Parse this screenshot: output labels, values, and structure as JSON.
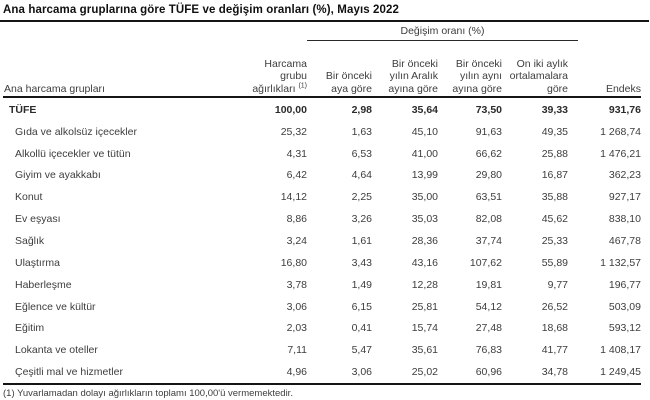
{
  "page": {
    "title": "Ana harcama gruplarına göre TÜFE ve değişim oranları (%), Mayıs 2022",
    "footnote": "(1) Yuvarlamadan dolayı ağırlıkların toplamı 100,00'ü vermemektedir."
  },
  "table": {
    "change_group_header": "Değişim oranı (%)",
    "row_header": "Ana harcama grupları",
    "weight_header": {
      "line1": "Harcama",
      "line2": "grubu",
      "line3": "ağırlıkları",
      "superscript": "(1)"
    },
    "change_headers": [
      {
        "line1": "Bir önceki",
        "line2": "aya göre",
        "line3": ""
      },
      {
        "line1": "Bir önceki",
        "line2": "yılın Aralık",
        "line3": "ayına göre"
      },
      {
        "line1": "Bir önceki",
        "line2": "yılın aynı",
        "line3": "ayına göre"
      },
      {
        "line1": "On iki aylık",
        "line2": "ortalamalara",
        "line3": "göre"
      }
    ],
    "index_header": "Endeks",
    "rows": [
      {
        "name": "TÜFE",
        "bold": true,
        "indent": false,
        "values": [
          "100,00",
          "2,98",
          "35,64",
          "73,50",
          "39,33",
          "931,76"
        ]
      },
      {
        "name": "Gıda ve alkolsüz içecekler",
        "bold": false,
        "indent": true,
        "values": [
          "25,32",
          "1,63",
          "45,10",
          "91,63",
          "49,35",
          "1 268,74"
        ]
      },
      {
        "name": "Alkollü içecekler ve tütün",
        "bold": false,
        "indent": true,
        "values": [
          "4,31",
          "6,53",
          "41,00",
          "66,62",
          "25,88",
          "1 476,21"
        ]
      },
      {
        "name": "Giyim ve ayakkabı",
        "bold": false,
        "indent": true,
        "values": [
          "6,42",
          "4,64",
          "13,99",
          "29,80",
          "16,87",
          "362,23"
        ]
      },
      {
        "name": "Konut",
        "bold": false,
        "indent": true,
        "values": [
          "14,12",
          "2,25",
          "35,00",
          "63,51",
          "35,88",
          "927,17"
        ]
      },
      {
        "name": "Ev eşyası",
        "bold": false,
        "indent": true,
        "values": [
          "8,86",
          "3,26",
          "35,03",
          "82,08",
          "45,62",
          "838,10"
        ]
      },
      {
        "name": "Sağlık",
        "bold": false,
        "indent": true,
        "values": [
          "3,24",
          "1,61",
          "28,36",
          "37,74",
          "25,33",
          "467,78"
        ]
      },
      {
        "name": "Ulaştırma",
        "bold": false,
        "indent": true,
        "values": [
          "16,80",
          "3,43",
          "43,16",
          "107,62",
          "55,89",
          "1 132,57"
        ]
      },
      {
        "name": "Haberleşme",
        "bold": false,
        "indent": true,
        "values": [
          "3,78",
          "1,49",
          "12,28",
          "19,81",
          "9,77",
          "196,77"
        ]
      },
      {
        "name": "Eğlence ve kültür",
        "bold": false,
        "indent": true,
        "values": [
          "3,06",
          "6,15",
          "25,81",
          "54,12",
          "26,52",
          "503,09"
        ]
      },
      {
        "name": "Eğitim",
        "bold": false,
        "indent": true,
        "values": [
          "2,03",
          "0,41",
          "15,74",
          "27,48",
          "18,68",
          "593,12"
        ]
      },
      {
        "name": "Lokanta ve oteller",
        "bold": false,
        "indent": true,
        "values": [
          "7,11",
          "5,47",
          "35,61",
          "76,83",
          "41,77",
          "1 408,17"
        ]
      },
      {
        "name": "Çeşitli mal ve hizmetler",
        "bold": false,
        "indent": true,
        "values": [
          "4,96",
          "3,06",
          "25,02",
          "60,96",
          "34,78",
          "1 249,45"
        ]
      }
    ]
  }
}
